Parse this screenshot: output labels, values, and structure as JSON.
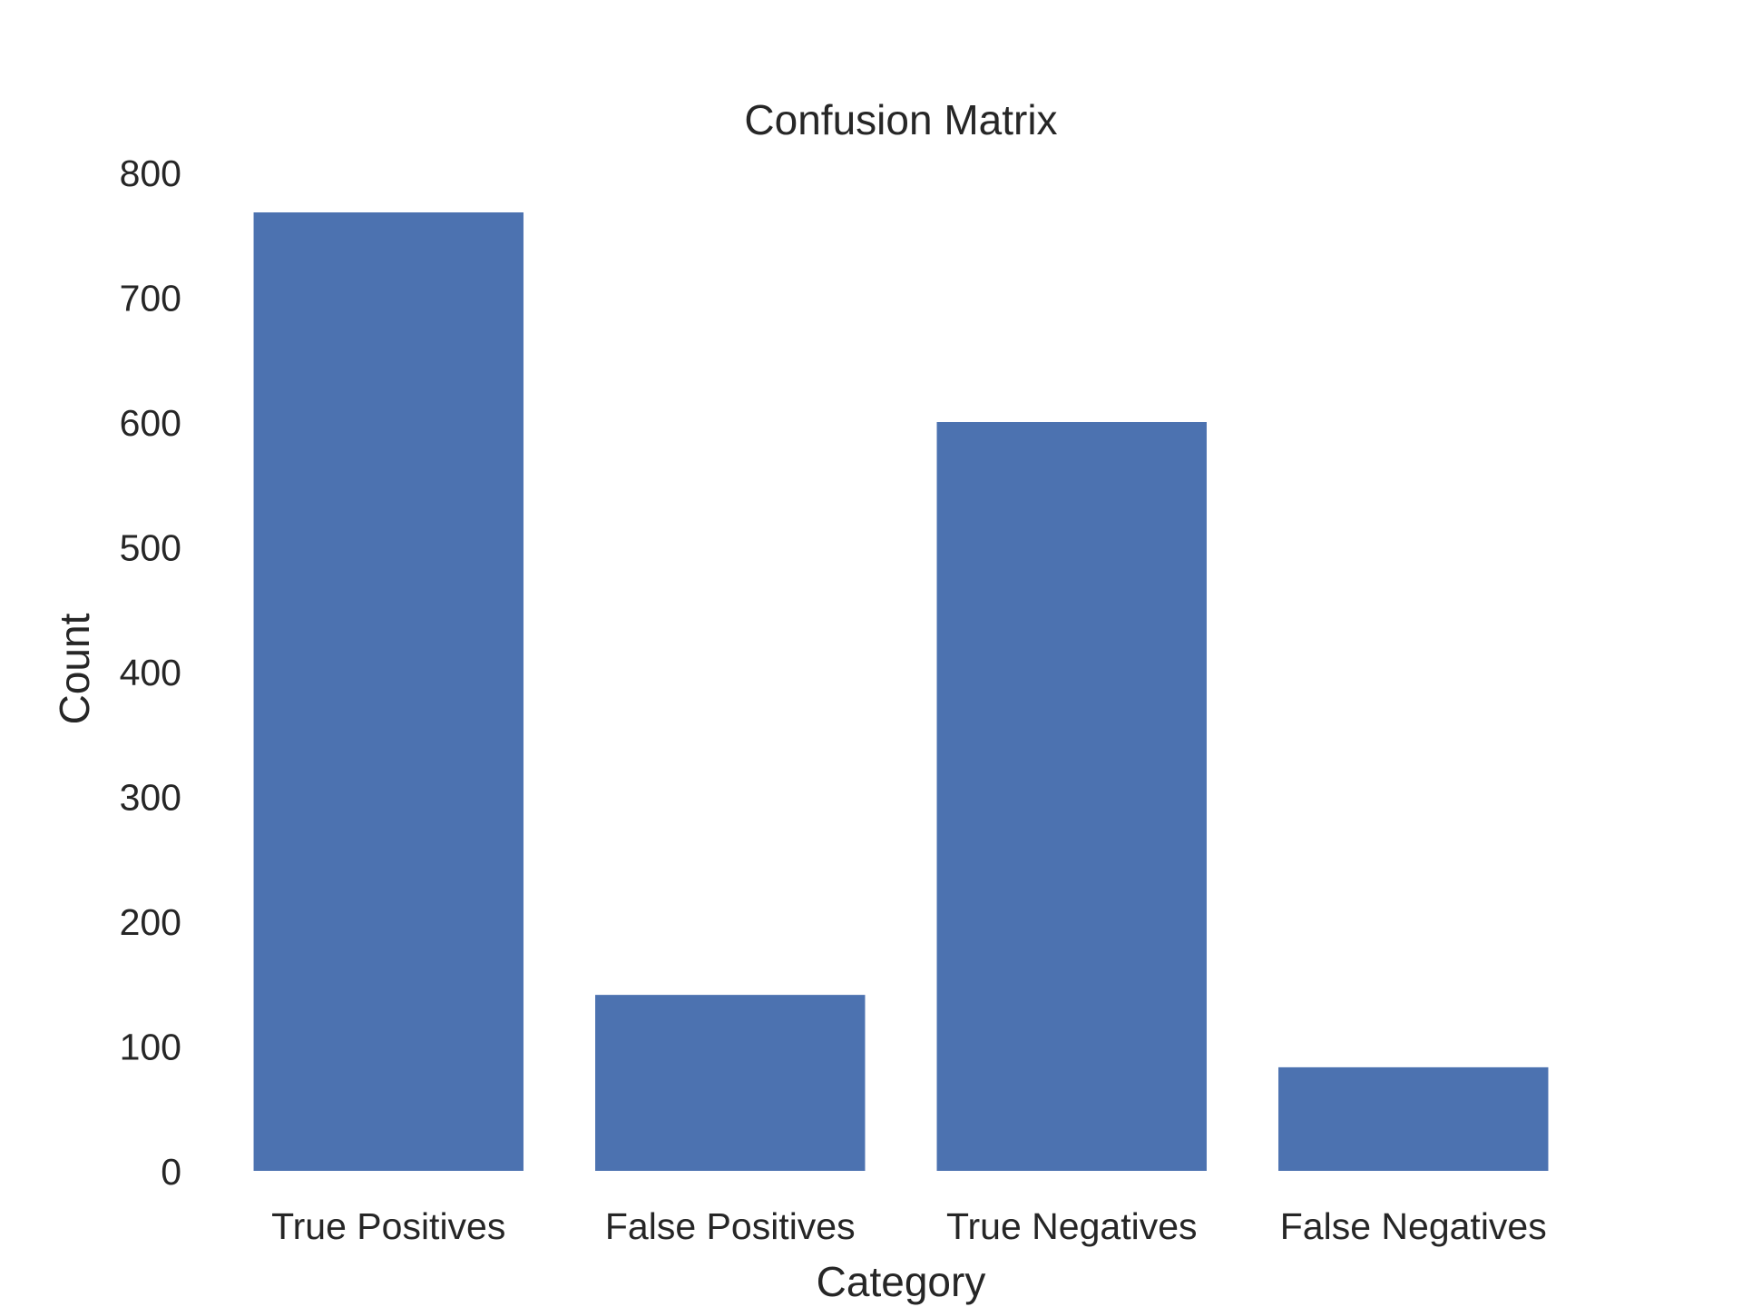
{
  "chart_data": {
    "type": "bar",
    "title": "Confusion Matrix",
    "xlabel": "Category",
    "ylabel": "Count",
    "categories": [
      "True Positives",
      "False Positives",
      "True Negatives",
      "False Negatives"
    ],
    "values": [
      768,
      141,
      600,
      83
    ],
    "ylim": [
      0,
      800
    ],
    "yticks": [
      0,
      100,
      200,
      300,
      400,
      500,
      600,
      700,
      800
    ],
    "ytick_labels": [
      "0",
      "100",
      "200",
      "300",
      "400",
      "500",
      "600",
      "700",
      "800"
    ],
    "bar_color": "#4c72b0",
    "grid": false,
    "legend": "none"
  }
}
